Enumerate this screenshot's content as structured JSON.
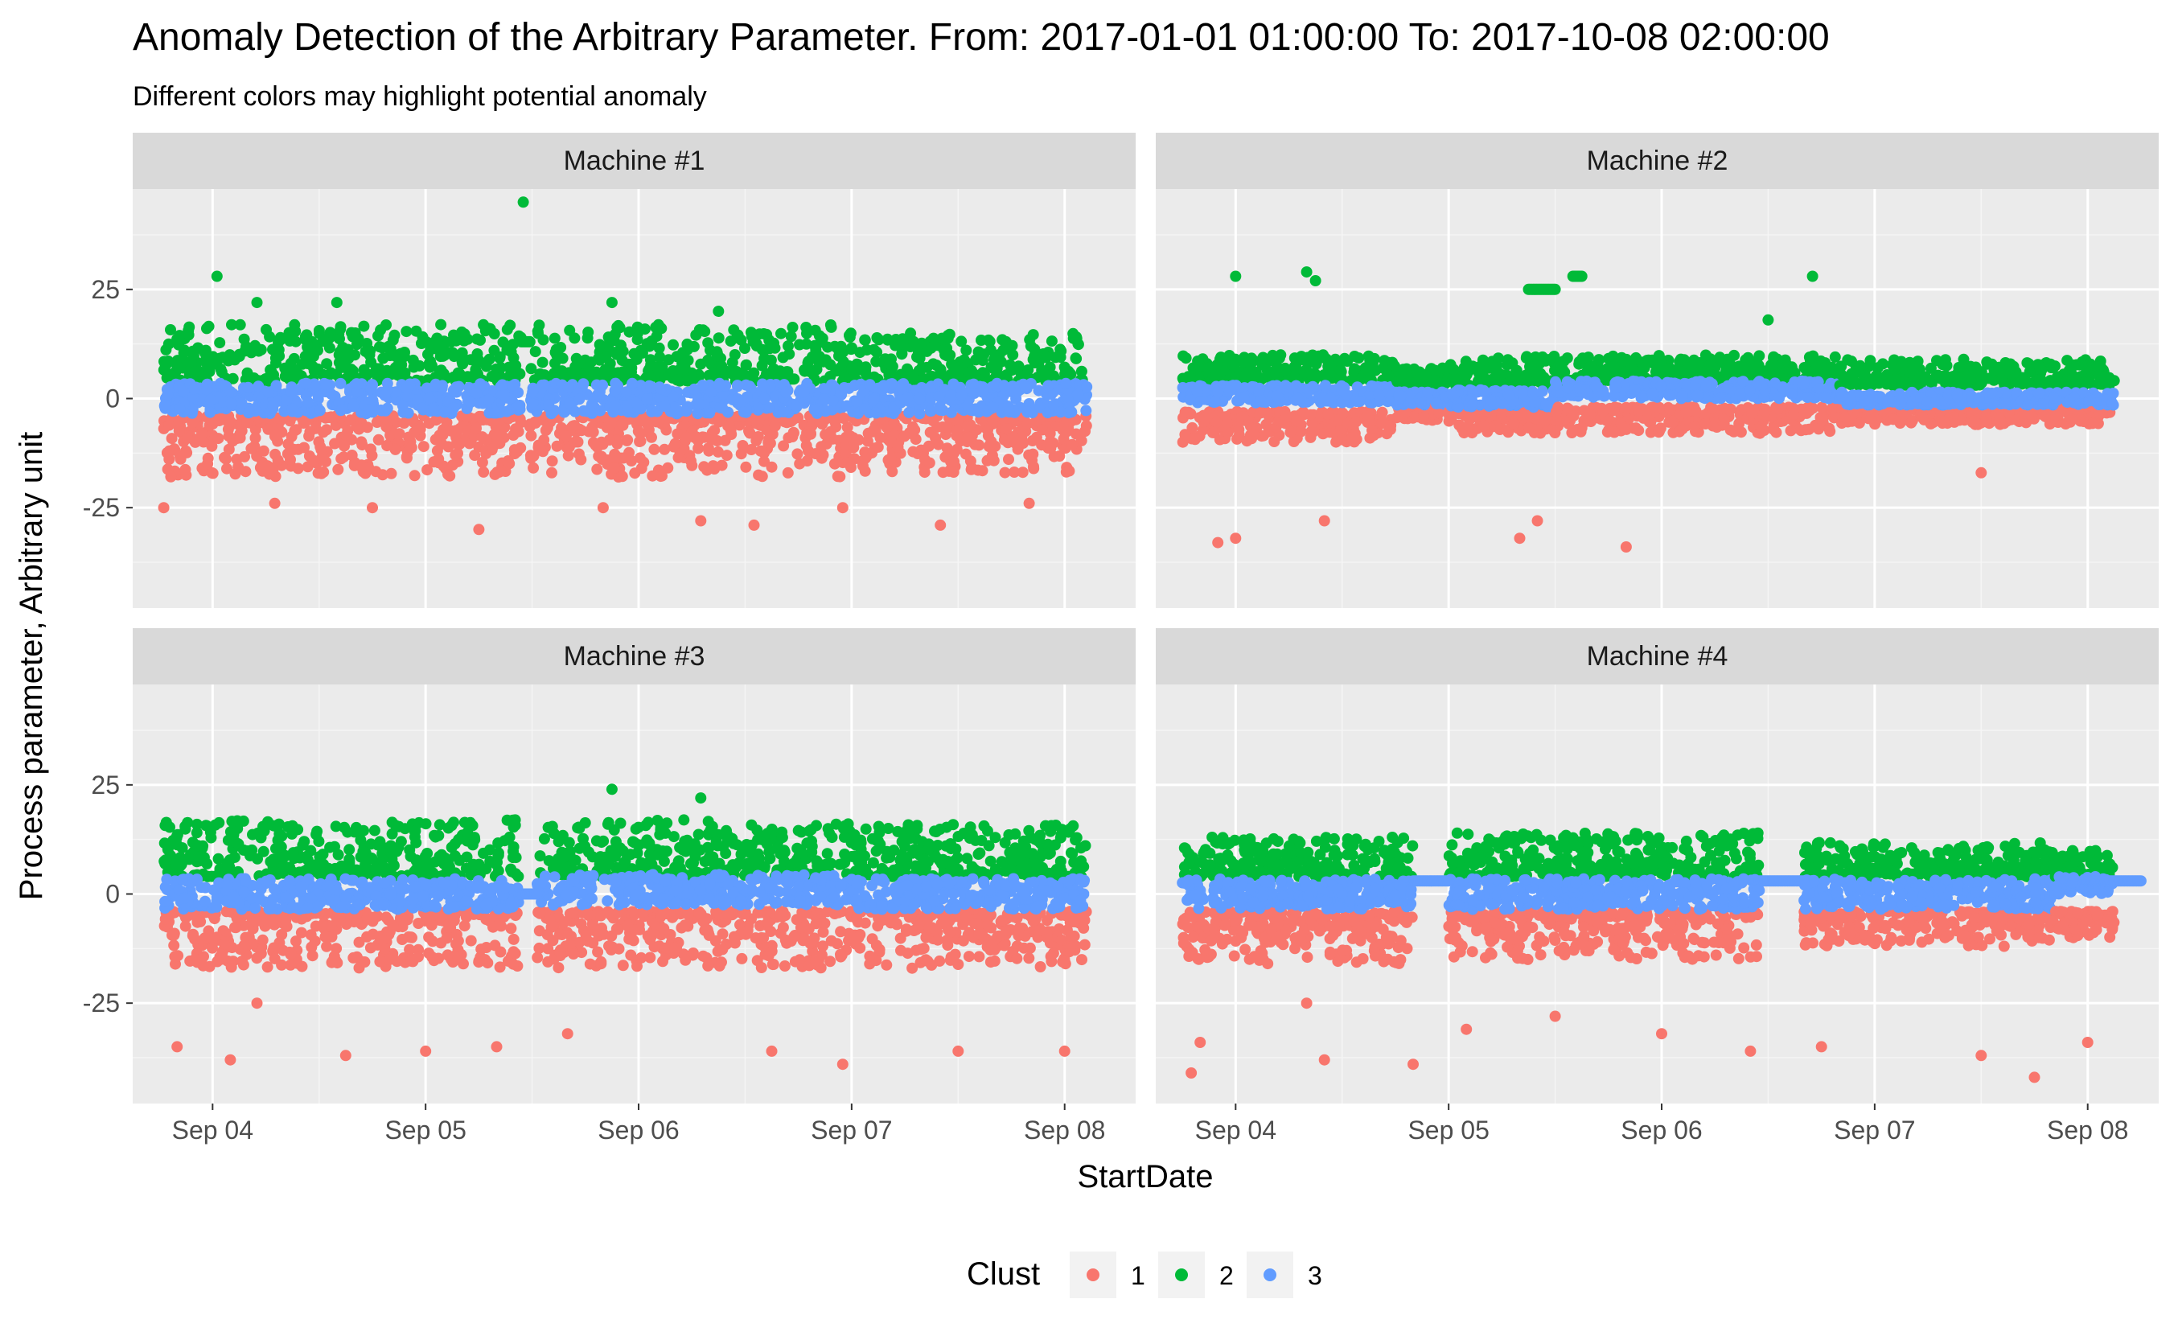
{
  "chart_data": {
    "type": "scatter",
    "title": "Anomaly Detection of the Arbitrary Parameter. From: 2017-01-01 01:00:00 To: 2017-10-08 02:00:00",
    "subtitle": "Different colors may highlight potential anomaly",
    "xlabel": "StartDate",
    "ylabel": "Process parameter, Arbitrary unit",
    "x_ticks": [
      "Sep 04",
      "Sep 05",
      "Sep 06",
      "Sep 07",
      "Sep 08"
    ],
    "y_ticks": [
      -25,
      0,
      25
    ],
    "xlim": [
      "2017-09-03 15:00",
      "2017-09-08 08:00"
    ],
    "ylim": [
      -48,
      48
    ],
    "grid": true,
    "legend": {
      "title": "Clust",
      "position": "bottom",
      "entries": [
        {
          "label": "1",
          "color": "#F8766D"
        },
        {
          "label": "2",
          "color": "#00BA38"
        },
        {
          "label": "3",
          "color": "#619CFF"
        }
      ]
    },
    "facets": [
      {
        "label": "Machine #1",
        "segments": [
          {
            "start": "2017-09-03 18:30",
            "end": "2017-09-05 10:45",
            "center": 0,
            "blue_spread": 3.5,
            "green_range": [
              4,
              17
            ],
            "red_range": [
              -18,
              -4
            ]
          },
          {
            "start": "2017-09-05 11:45",
            "end": "2017-09-06 23:00",
            "center": 0,
            "blue_spread": 3.5,
            "green_range": [
              4,
              17
            ],
            "red_range": [
              -18,
              -4
            ]
          },
          {
            "start": "2017-09-06 23:00",
            "end": "2017-09-08 02:30",
            "center": 0,
            "blue_spread": 3.5,
            "green_range": [
              4,
              15
            ],
            "red_range": [
              -17,
              -4
            ]
          }
        ],
        "gap_lines": [
          {
            "start": "2017-09-05 10:45",
            "end": "2017-09-05 11:45",
            "y": 13,
            "cluster": 2
          }
        ],
        "outliers": [
          {
            "x": "2017-09-05 11:00",
            "y": 45,
            "cluster": 2
          },
          {
            "x": "2017-09-04 00:30",
            "y": 28,
            "cluster": 2
          },
          {
            "x": "2017-09-04 05:00",
            "y": 22,
            "cluster": 2
          },
          {
            "x": "2017-09-04 14:00",
            "y": 22,
            "cluster": 2
          },
          {
            "x": "2017-09-05 21:00",
            "y": 22,
            "cluster": 2
          },
          {
            "x": "2017-09-06 09:00",
            "y": 20,
            "cluster": 2
          },
          {
            "x": "2017-09-03 18:30",
            "y": -25,
            "cluster": 1
          },
          {
            "x": "2017-09-04 07:00",
            "y": -24,
            "cluster": 1
          },
          {
            "x": "2017-09-04 18:00",
            "y": -25,
            "cluster": 1
          },
          {
            "x": "2017-09-05 06:00",
            "y": -30,
            "cluster": 1
          },
          {
            "x": "2017-09-05 20:00",
            "y": -25,
            "cluster": 1
          },
          {
            "x": "2017-09-06 07:00",
            "y": -28,
            "cluster": 1
          },
          {
            "x": "2017-09-06 13:00",
            "y": -29,
            "cluster": 1
          },
          {
            "x": "2017-09-06 23:00",
            "y": -25,
            "cluster": 1
          },
          {
            "x": "2017-09-07 10:00",
            "y": -29,
            "cluster": 1
          },
          {
            "x": "2017-09-07 20:00",
            "y": -24,
            "cluster": 1
          }
        ]
      },
      {
        "label": "Machine #2",
        "segments": [
          {
            "start": "2017-09-03 18:00",
            "end": "2017-09-04 18:00",
            "center": 1,
            "blue_spread": 2,
            "green_range": [
              4,
              10
            ],
            "red_range": [
              -10,
              -3
            ]
          },
          {
            "start": "2017-09-04 18:00",
            "end": "2017-09-05 00:00",
            "center": 0,
            "blue_spread": 1.5,
            "green_range": [
              3,
              7
            ],
            "red_range": [
              -5,
              -2
            ]
          },
          {
            "start": "2017-09-05 00:00",
            "end": "2017-09-05 12:00",
            "center": 0,
            "blue_spread": 2,
            "green_range": [
              3,
              10
            ],
            "red_range": [
              -8,
              -3
            ]
          },
          {
            "start": "2017-09-05 12:00",
            "end": "2017-09-06 20:00",
            "center": 2,
            "blue_spread": 2,
            "green_range": [
              4,
              10
            ],
            "red_range": [
              -8,
              -2
            ]
          },
          {
            "start": "2017-09-06 20:00",
            "end": "2017-09-08 03:00",
            "center": 0,
            "blue_spread": 1.5,
            "green_range": [
              3,
              9
            ],
            "red_range": [
              -6,
              -2
            ]
          }
        ],
        "gap_lines": [
          {
            "start": "2017-09-05 09:00",
            "end": "2017-09-05 12:00",
            "y": 25,
            "cluster": 2
          },
          {
            "start": "2017-09-05 14:00",
            "end": "2017-09-05 15:00",
            "y": 28,
            "cluster": 2
          }
        ],
        "outliers": [
          {
            "x": "2017-09-03 22:00",
            "y": -33,
            "cluster": 1
          },
          {
            "x": "2017-09-04 00:00",
            "y": 28,
            "cluster": 2
          },
          {
            "x": "2017-09-04 00:00",
            "y": -32,
            "cluster": 1
          },
          {
            "x": "2017-09-04 08:00",
            "y": 29,
            "cluster": 2
          },
          {
            "x": "2017-09-04 09:00",
            "y": 27,
            "cluster": 2
          },
          {
            "x": "2017-09-04 10:00",
            "y": -28,
            "cluster": 1
          },
          {
            "x": "2017-09-05 08:00",
            "y": -32,
            "cluster": 1
          },
          {
            "x": "2017-09-05 10:00",
            "y": -28,
            "cluster": 1
          },
          {
            "x": "2017-09-05 20:00",
            "y": -34,
            "cluster": 1
          },
          {
            "x": "2017-09-06 17:00",
            "y": 28,
            "cluster": 2
          },
          {
            "x": "2017-09-06 12:00",
            "y": 18,
            "cluster": 2
          },
          {
            "x": "2017-09-07 12:00",
            "y": -17,
            "cluster": 1
          }
        ]
      },
      {
        "label": "Machine #3",
        "segments": [
          {
            "start": "2017-09-03 18:30",
            "end": "2017-09-05 10:30",
            "center": 0,
            "blue_spread": 3.5,
            "green_range": [
              4,
              17
            ],
            "red_range": [
              -17,
              -4
            ]
          },
          {
            "start": "2017-09-05 12:30",
            "end": "2017-09-07 00:00",
            "center": 1,
            "blue_spread": 3.5,
            "green_range": [
              4,
              17
            ],
            "red_range": [
              -17,
              -4
            ]
          },
          {
            "start": "2017-09-07 00:00",
            "end": "2017-09-08 02:30",
            "center": 0,
            "blue_spread": 3.5,
            "green_range": [
              4,
              16
            ],
            "red_range": [
              -17,
              -4
            ]
          }
        ],
        "gap_lines": [
          {
            "start": "2017-09-05 10:30",
            "end": "2017-09-05 12:30",
            "y": 0,
            "cluster": 3
          }
        ],
        "outliers": [
          {
            "x": "2017-09-05 21:00",
            "y": 24,
            "cluster": 2
          },
          {
            "x": "2017-09-06 07:00",
            "y": 22,
            "cluster": 2
          },
          {
            "x": "2017-09-03 20:00",
            "y": -35,
            "cluster": 1
          },
          {
            "x": "2017-09-04 02:00",
            "y": -38,
            "cluster": 1
          },
          {
            "x": "2017-09-04 05:00",
            "y": -25,
            "cluster": 1
          },
          {
            "x": "2017-09-04 15:00",
            "y": -37,
            "cluster": 1
          },
          {
            "x": "2017-09-05 00:00",
            "y": -36,
            "cluster": 1
          },
          {
            "x": "2017-09-05 08:00",
            "y": -35,
            "cluster": 1
          },
          {
            "x": "2017-09-05 16:00",
            "y": -32,
            "cluster": 1
          },
          {
            "x": "2017-09-06 15:00",
            "y": -36,
            "cluster": 1
          },
          {
            "x": "2017-09-06 23:00",
            "y": -39,
            "cluster": 1
          },
          {
            "x": "2017-09-07 12:00",
            "y": -36,
            "cluster": 1
          },
          {
            "x": "2017-09-08 00:00",
            "y": -36,
            "cluster": 1
          }
        ]
      },
      {
        "label": "Machine #4",
        "segments": [
          {
            "start": "2017-09-03 18:00",
            "end": "2017-09-04 20:00",
            "center": 0,
            "blue_spread": 3.5,
            "green_range": [
              4,
              13
            ],
            "red_range": [
              -16,
              -4
            ]
          },
          {
            "start": "2017-09-05 00:00",
            "end": "2017-09-06 11:00",
            "center": 0,
            "blue_spread": 3.5,
            "green_range": [
              4,
              14
            ],
            "red_range": [
              -15,
              -4
            ]
          },
          {
            "start": "2017-09-06 16:00",
            "end": "2017-09-07 20:00",
            "center": 0,
            "blue_spread": 3.5,
            "green_range": [
              4,
              12
            ],
            "red_range": [
              -12,
              -4
            ]
          },
          {
            "start": "2017-09-07 20:00",
            "end": "2017-09-08 03:00",
            "center": 2,
            "blue_spread": 2,
            "green_range": [
              4,
              10
            ],
            "red_range": [
              -10,
              -4
            ]
          }
        ],
        "gap_lines": [
          {
            "start": "2017-09-04 20:00",
            "end": "2017-09-05 00:00",
            "y": 3,
            "cluster": 3
          },
          {
            "start": "2017-09-06 11:00",
            "end": "2017-09-06 16:00",
            "y": 3,
            "cluster": 3
          },
          {
            "start": "2017-09-08 00:00",
            "end": "2017-09-08 06:00",
            "y": 3,
            "cluster": 3
          }
        ],
        "outliers": [
          {
            "x": "2017-09-03 19:00",
            "y": -41,
            "cluster": 1
          },
          {
            "x": "2017-09-03 20:00",
            "y": -34,
            "cluster": 1
          },
          {
            "x": "2017-09-04 08:00",
            "y": -25,
            "cluster": 1
          },
          {
            "x": "2017-09-04 10:00",
            "y": -38,
            "cluster": 1
          },
          {
            "x": "2017-09-04 20:00",
            "y": -39,
            "cluster": 1
          },
          {
            "x": "2017-09-05 02:00",
            "y": -31,
            "cluster": 1
          },
          {
            "x": "2017-09-05 12:00",
            "y": -28,
            "cluster": 1
          },
          {
            "x": "2017-09-06 00:00",
            "y": -32,
            "cluster": 1
          },
          {
            "x": "2017-09-06 10:00",
            "y": -36,
            "cluster": 1
          },
          {
            "x": "2017-09-06 18:00",
            "y": -35,
            "cluster": 1
          },
          {
            "x": "2017-09-07 12:00",
            "y": -37,
            "cluster": 1
          },
          {
            "x": "2017-09-07 18:00",
            "y": -42,
            "cluster": 1
          },
          {
            "x": "2017-09-08 00:00",
            "y": -34,
            "cluster": 1
          }
        ]
      }
    ]
  }
}
